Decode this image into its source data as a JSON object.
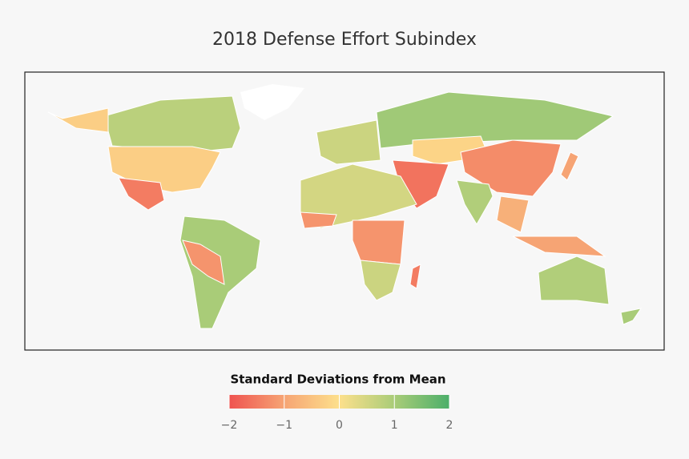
{
  "map": {
    "title": "2018 Defense Effort Subindex",
    "legend_title": "Standard Deviations from Mean",
    "colorscale": [
      [
        -2,
        "#ef5350"
      ],
      [
        -1,
        "#f6a474"
      ],
      [
        0,
        "#fde08c"
      ],
      [
        1,
        "#a9cc78"
      ],
      [
        2,
        "#4caf6a"
      ]
    ],
    "ticks": [
      {
        "value": -2,
        "label": "−2"
      },
      {
        "value": -1,
        "label": "−1"
      },
      0,
      1,
      2
    ],
    "values": [
      0.8,
      -0.3,
      -1.5,
      1.0,
      -1.2,
      0.6,
      1.1,
      -0.2,
      -1.3,
      -1.6,
      0.9,
      -0.8,
      -1.0,
      0.5,
      -1.2,
      0.6,
      -1.5,
      0.9,
      -1.0,
      1.0
    ]
  }
}
